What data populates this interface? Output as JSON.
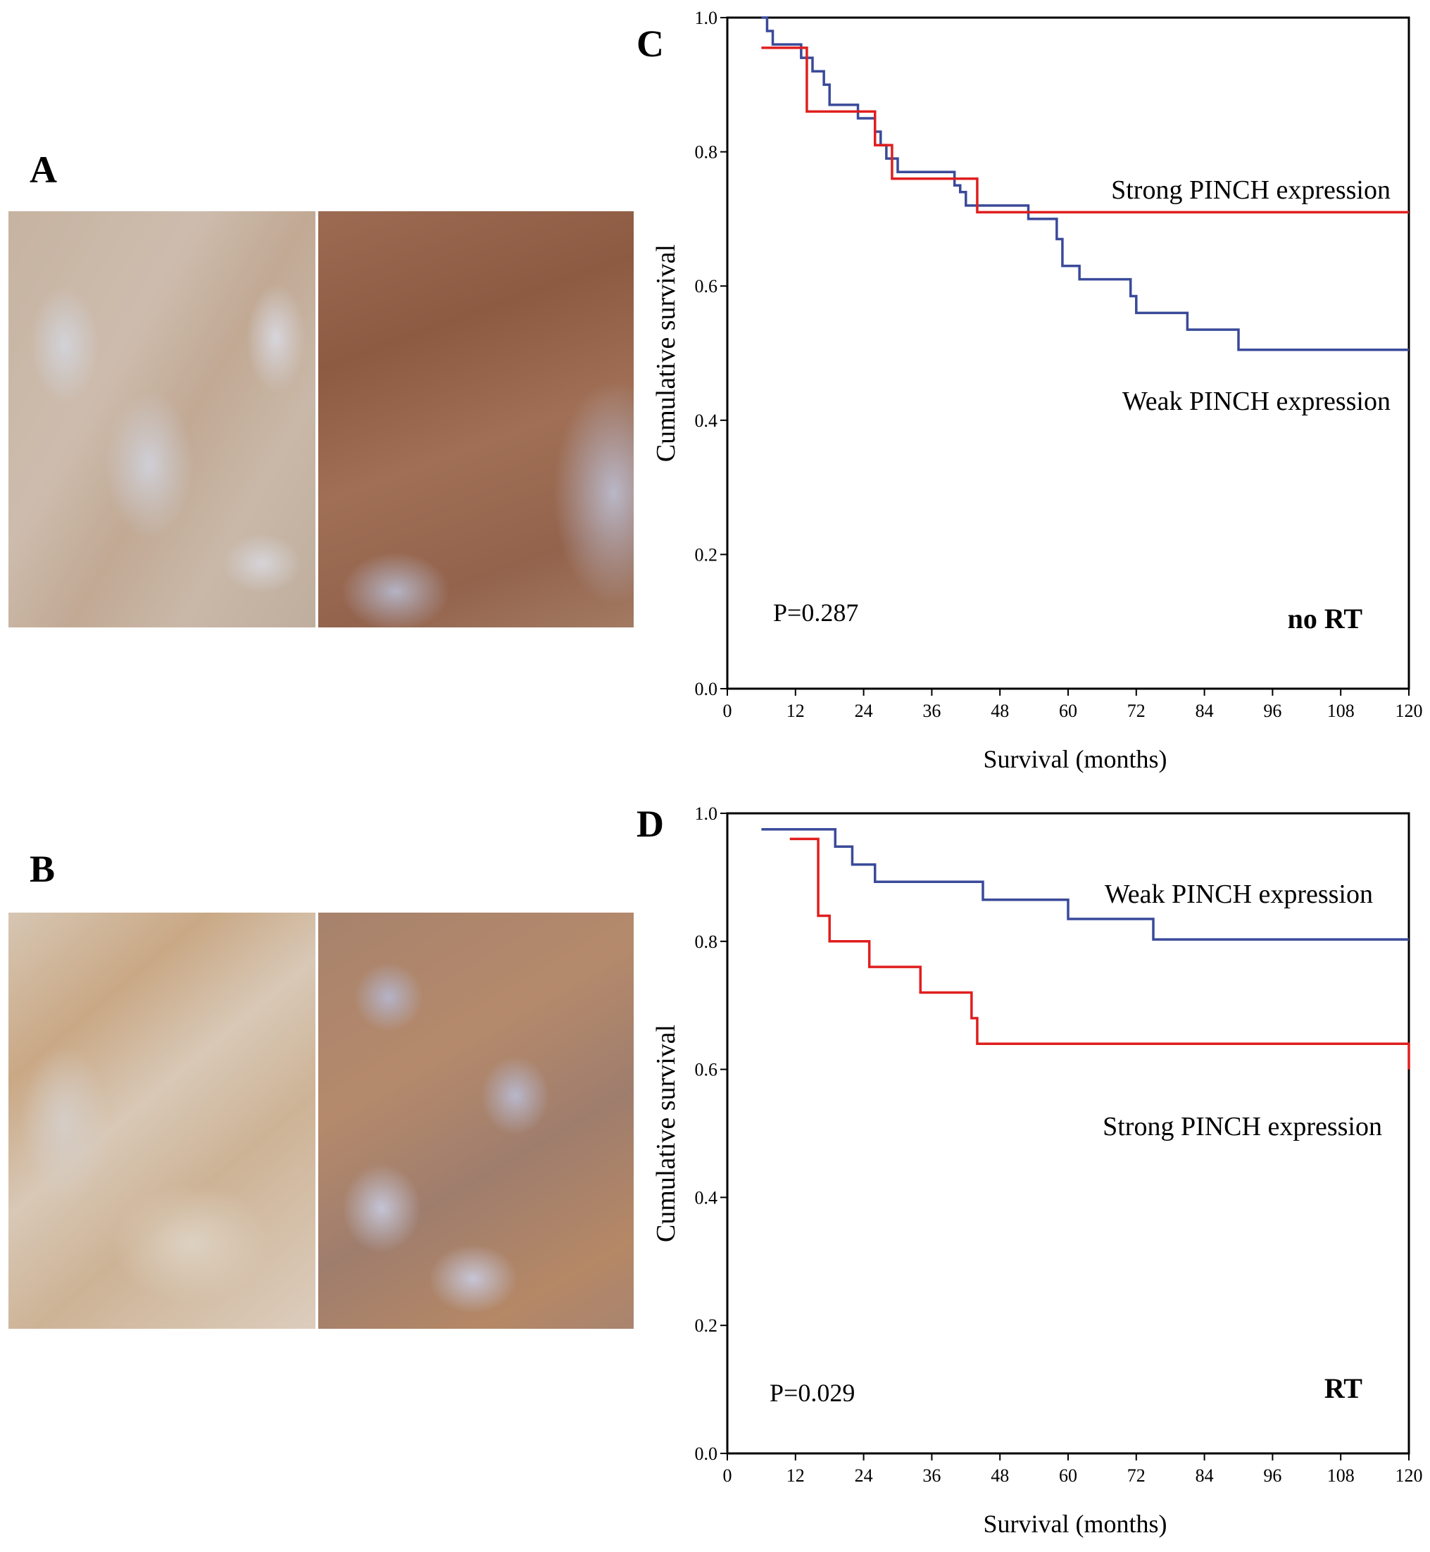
{
  "panels": {
    "a": {
      "label": "A"
    },
    "b": {
      "label": "B"
    },
    "c": {
      "label": "C"
    },
    "d": {
      "label": "D"
    }
  },
  "chart_data": [
    {
      "type": "line",
      "panel": "C",
      "step": true,
      "xlabel": "Survival (months)",
      "ylabel": "Cumulative survival",
      "xlim": [
        0,
        120
      ],
      "ylim": [
        0,
        1.0
      ],
      "xticks": [
        "0",
        "12",
        "24",
        "36",
        "48",
        "60",
        "72",
        "84",
        "96",
        "108",
        "120"
      ],
      "yticks": [
        "0.0",
        "0.2",
        "0.4",
        "0.6",
        "0.8",
        "1.0"
      ],
      "annotations": {
        "p_value": "P=0.287",
        "group": "no RT"
      },
      "series": [
        {
          "name": "Weak PINCH expression",
          "color": "#3a4a9a",
          "x": [
            6,
            7,
            8,
            13,
            15,
            17,
            18,
            22,
            23,
            26,
            27,
            28,
            30,
            34,
            40,
            41,
            42,
            46,
            53,
            57,
            58,
            59,
            62,
            70,
            71,
            72,
            81,
            90,
            120
          ],
          "y": [
            1.0,
            0.98,
            0.96,
            0.94,
            0.92,
            0.9,
            0.87,
            0.87,
            0.85,
            0.83,
            0.81,
            0.79,
            0.77,
            0.77,
            0.75,
            0.74,
            0.72,
            0.72,
            0.7,
            0.7,
            0.67,
            0.63,
            0.61,
            0.61,
            0.585,
            0.56,
            0.535,
            0.505,
            0.505
          ]
        },
        {
          "name": "Strong PINCH expression",
          "color": "#e01e1e",
          "x": [
            6,
            14,
            26,
            27,
            29,
            44,
            120
          ],
          "y": [
            0.955,
            0.86,
            0.81,
            0.81,
            0.76,
            0.71,
            0.71
          ]
        }
      ]
    },
    {
      "type": "line",
      "panel": "D",
      "step": true,
      "xlabel": "Survival (months)",
      "ylabel": "Cumulative survival",
      "xlim": [
        0,
        120
      ],
      "ylim": [
        0,
        1.0
      ],
      "xticks": [
        "0",
        "12",
        "24",
        "36",
        "48",
        "60",
        "72",
        "84",
        "96",
        "108",
        "120"
      ],
      "yticks": [
        "0.0",
        "0.2",
        "0.4",
        "0.6",
        "0.8",
        "1.0"
      ],
      "annotations": {
        "p_value": "P=0.029",
        "group": "RT"
      },
      "series": [
        {
          "name": "Weak PINCH expression",
          "color": "#3a4a9a",
          "x": [
            6,
            19,
            22,
            26,
            45,
            60,
            75,
            120
          ],
          "y": [
            0.975,
            0.948,
            0.92,
            0.893,
            0.865,
            0.835,
            0.803,
            0.803
          ]
        },
        {
          "name": "Strong PINCH expression",
          "color": "#e01e1e",
          "x": [
            11,
            16,
            18,
            25,
            34,
            43,
            44,
            120
          ],
          "y": [
            0.96,
            0.84,
            0.8,
            0.76,
            0.72,
            0.68,
            0.64,
            0.6
          ]
        }
      ]
    }
  ]
}
